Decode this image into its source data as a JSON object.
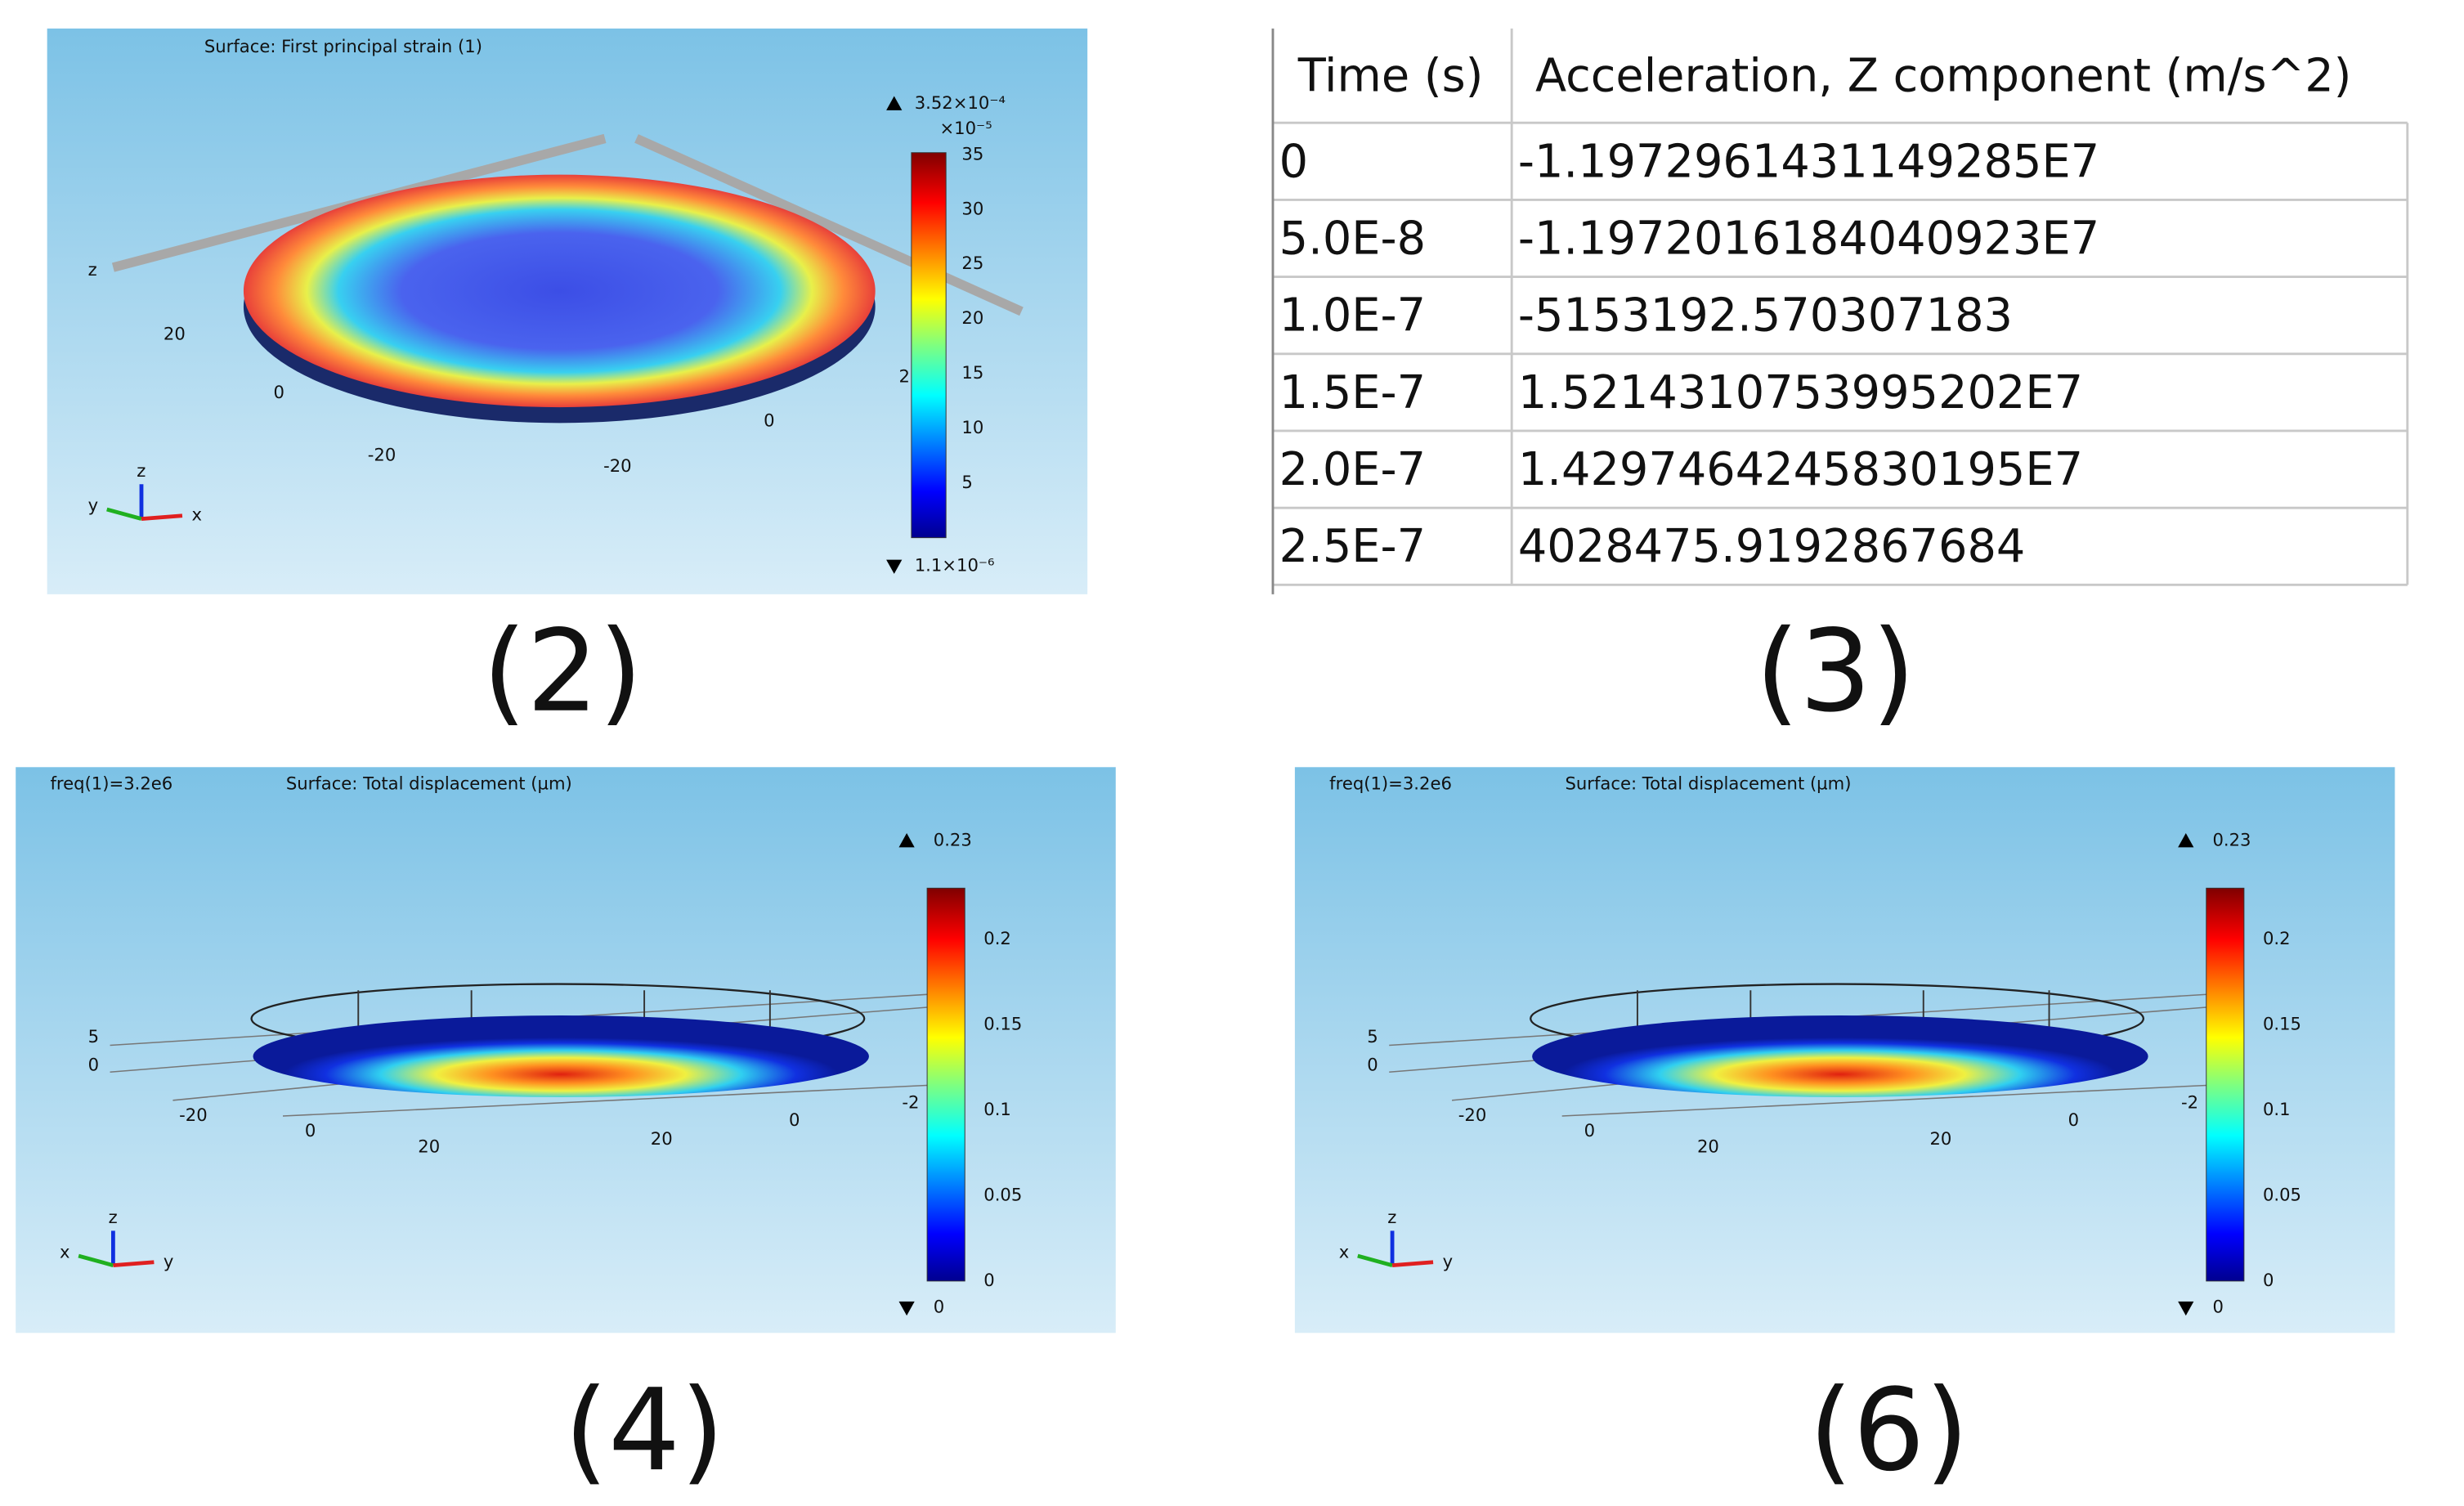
{
  "panel2": {
    "title": "Surface: First principal strain (1)",
    "max_label": "3.52×10⁻⁴",
    "multiplier": "×10⁻⁵",
    "ticks": [
      35,
      30,
      25,
      20,
      15,
      10,
      5
    ],
    "min_label": "1.1×10⁻⁶",
    "axis_labels": [
      "z",
      "20",
      "0",
      "-20",
      "-20",
      "0",
      "2"
    ],
    "triad": [
      "y",
      "z",
      "x"
    ],
    "caption": "(2)"
  },
  "table": {
    "headers": [
      "Time (s)",
      "Acceleration, Z component (m/s^2)"
    ],
    "rows": [
      [
        "0",
        "-1.1972961431149285E7"
      ],
      [
        "5.0E-8",
        "-1.1972016184040923E7"
      ],
      [
        "1.0E-7",
        "-5153192.570307183"
      ],
      [
        "1.5E-7",
        "1.5214310753995202E7"
      ],
      [
        "2.0E-7",
        "1.4297464245830195E7"
      ],
      [
        "2.5E-7",
        "4028475.9192867684"
      ]
    ],
    "caption": "(3)"
  },
  "panel4": {
    "freq": "freq(1)=3.2e6",
    "title": "Surface: Total displacement (µm)",
    "max_label": "0.23",
    "ticks": [
      0.2,
      0.15,
      0.1,
      0.05,
      0
    ],
    "min_label": "0",
    "axis_labels": [
      "5",
      "0",
      "-20",
      "0",
      "20",
      "20",
      "0",
      "-2"
    ],
    "triad": [
      "x",
      "z",
      "y"
    ],
    "caption": "(4)"
  },
  "panel6": {
    "freq": "freq(1)=3.2e6",
    "title": "Surface: Total displacement (µm)",
    "max_label": "0.23",
    "ticks": [
      0.2,
      0.15,
      0.1,
      0.05,
      0
    ],
    "min_label": "0",
    "axis_labels": [
      "5",
      "0",
      "-20",
      "0",
      "20",
      "20",
      "0",
      "-2"
    ],
    "triad": [
      "x",
      "z",
      "y"
    ],
    "caption": "(6)"
  }
}
